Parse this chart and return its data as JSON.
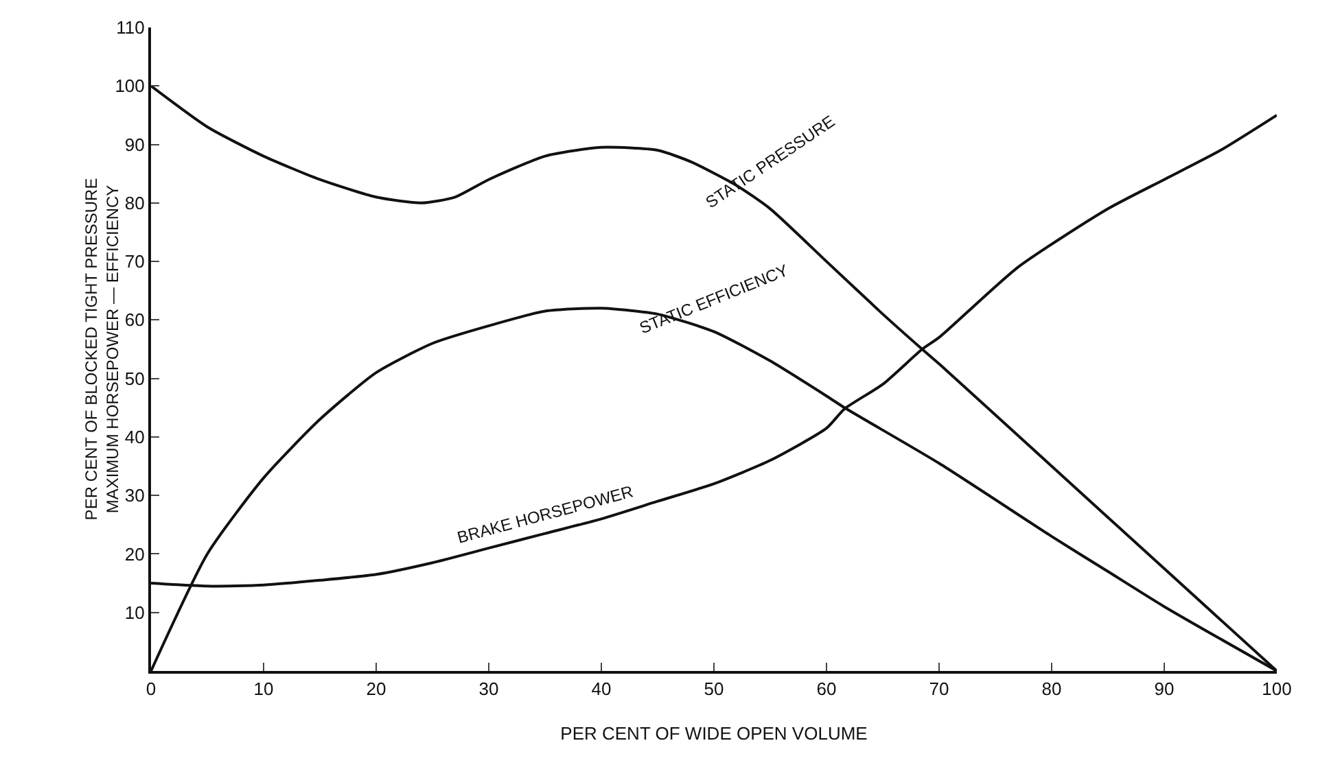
{
  "chart_data": {
    "type": "line",
    "xlabel": "PER CENT OF WIDE OPEN VOLUME",
    "ylabel": "PER CENT OF BLOCKED TIGHT PRESSURE\nMAXIMUM HORSEPOWER — EFFICIENCY",
    "xlim": [
      0,
      100
    ],
    "ylim": [
      0,
      110
    ],
    "xticks": [
      0,
      10,
      20,
      30,
      40,
      50,
      60,
      70,
      80,
      90,
      100
    ],
    "yticks": [
      10,
      20,
      30,
      40,
      50,
      60,
      70,
      80,
      90,
      100,
      110
    ],
    "grid": false,
    "legend": false,
    "marker": "none",
    "line_style": "solid",
    "series": [
      {
        "name": "STATIC PRESSURE",
        "color": "#111111",
        "x": [
          0,
          5,
          10,
          15,
          20,
          24,
          27,
          30,
          35,
          40,
          45,
          48,
          52,
          55,
          60,
          65,
          68.5,
          70,
          80,
          90,
          100
        ],
        "values": [
          100,
          93,
          88,
          84,
          81,
          80,
          81,
          84,
          88,
          89.5,
          89,
          87,
          83,
          79,
          70,
          61,
          55,
          52.5,
          35,
          17.5,
          0
        ]
      },
      {
        "name": "STATIC EFFICIENCY",
        "color": "#111111",
        "x": [
          0,
          5,
          10,
          15,
          20,
          25,
          30,
          35,
          40,
          45,
          50,
          55,
          60,
          61.6,
          70,
          80,
          85,
          90,
          100
        ],
        "values": [
          0,
          20,
          33,
          43,
          51,
          56,
          59,
          61.5,
          62,
          61,
          58,
          53,
          47,
          45,
          35.5,
          23,
          17,
          11,
          0
        ]
      },
      {
        "name": "BRAKE HORSEPOWER",
        "color": "#111111",
        "x": [
          0,
          5,
          10,
          15,
          20,
          25,
          30,
          35,
          40,
          45,
          50,
          55,
          60,
          61.6,
          65,
          68.5,
          70,
          77,
          85,
          90,
          95,
          100
        ],
        "values": [
          15,
          14.5,
          14.7,
          15.5,
          16.5,
          18.5,
          21,
          23.5,
          26,
          29,
          32,
          36,
          41.5,
          44.8,
          49,
          55,
          57,
          69,
          79,
          84,
          89,
          95
        ]
      }
    ]
  }
}
